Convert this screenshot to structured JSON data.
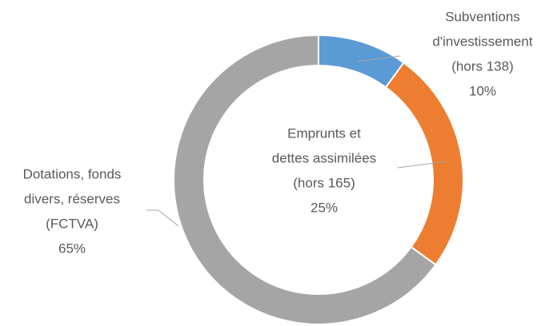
{
  "chart_data": {
    "type": "donut",
    "categories": [
      [
        "Subventions",
        "d'investissement",
        "(hors 138)"
      ],
      [
        "Emprunts et",
        "dettes assimilées",
        "(hors 165)"
      ],
      [
        "Dotations, fonds",
        "divers, réserves",
        "(FCTVA)"
      ]
    ],
    "values": [
      10,
      25,
      65
    ],
    "value_labels": [
      "10%",
      "25%",
      "65%"
    ],
    "colors": [
      "#5b9bd5",
      "#ed7d31",
      "#a5a5a5"
    ]
  }
}
